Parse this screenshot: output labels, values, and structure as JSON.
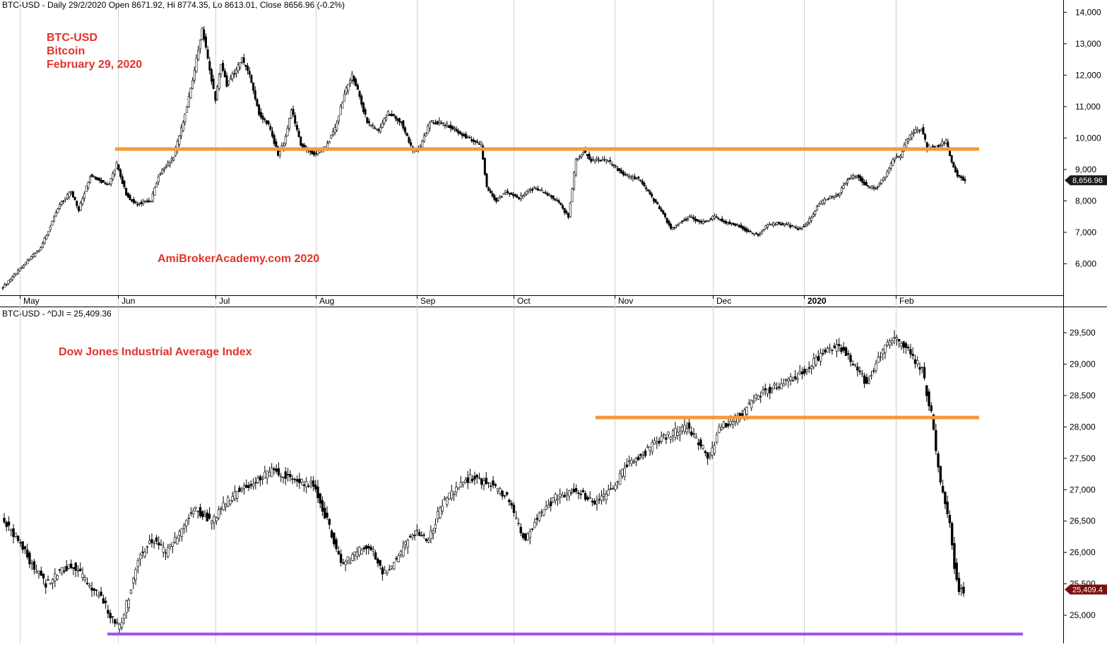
{
  "chart_data": [
    {
      "type": "candlestick",
      "header": "BTC-USD - Daily 29/2/2020 Open 8671.92, Hi 8774.35, Lo 8613.01, Close 8656.96 (-0.2%)",
      "annotations": [
        "BTC-USD",
        "Bitcoin",
        "February 29, 2020"
      ],
      "watermark": "AmiBrokerAcademy.com  2020",
      "y_ticks": [
        "14,000",
        "13,000",
        "12,000",
        "11,000",
        "10,000",
        "9,000",
        "8,000",
        "7,000",
        "6,000"
      ],
      "x_ticks": [
        "May",
        "Jun",
        "Jul",
        "Aug",
        "Sep",
        "Oct",
        "Nov",
        "Dec",
        "2020",
        "Feb"
      ],
      "last_price_label": "8,656.96",
      "last_price": 8656.96,
      "ylim": [
        5000,
        14300
      ],
      "support_line": 9650,
      "support_line_color": "#f59a3a",
      "path": [
        [
          0,
          5250
        ],
        [
          10,
          5900
        ],
        [
          20,
          6500
        ],
        [
          30,
          7900
        ],
        [
          36,
          8300
        ],
        [
          40,
          7700
        ],
        [
          46,
          8800
        ],
        [
          50,
          8700
        ],
        [
          56,
          8500
        ],
        [
          60,
          9200
        ],
        [
          65,
          8200
        ],
        [
          70,
          7900
        ],
        [
          78,
          8000
        ],
        [
          82,
          8800
        ],
        [
          86,
          9100
        ],
        [
          90,
          9400
        ],
        [
          95,
          10500
        ],
        [
          100,
          11800
        ],
        [
          105,
          13500
        ],
        [
          108,
          12500
        ],
        [
          112,
          11200
        ],
        [
          115,
          12400
        ],
        [
          118,
          11700
        ],
        [
          123,
          12200
        ],
        [
          126,
          12500
        ],
        [
          130,
          12000
        ],
        [
          135,
          10800
        ],
        [
          140,
          10400
        ],
        [
          145,
          9500
        ],
        [
          148,
          9800
        ],
        [
          152,
          10900
        ],
        [
          157,
          9800
        ],
        [
          160,
          9600
        ],
        [
          165,
          9500
        ],
        [
          170,
          9700
        ],
        [
          175,
          10300
        ],
        [
          180,
          11400
        ],
        [
          184,
          12000
        ],
        [
          188,
          11300
        ],
        [
          192,
          10500
        ],
        [
          198,
          10200
        ],
        [
          203,
          10800
        ],
        [
          210,
          10500
        ],
        [
          216,
          9600
        ],
        [
          220,
          9700
        ],
        [
          225,
          10500
        ],
        [
          230,
          10500
        ],
        [
          238,
          10300
        ],
        [
          245,
          10000
        ],
        [
          252,
          9800
        ],
        [
          255,
          8400
        ],
        [
          260,
          8000
        ],
        [
          265,
          8300
        ],
        [
          272,
          8100
        ],
        [
          278,
          8400
        ],
        [
          285,
          8300
        ],
        [
          292,
          8000
        ],
        [
          298,
          7500
        ],
        [
          302,
          9300
        ],
        [
          306,
          9600
        ],
        [
          310,
          9300
        ],
        [
          318,
          9300
        ],
        [
          322,
          9100
        ],
        [
          328,
          8800
        ],
        [
          335,
          8700
        ],
        [
          342,
          8100
        ],
        [
          348,
          7600
        ],
        [
          352,
          7100
        ],
        [
          356,
          7300
        ],
        [
          362,
          7500
        ],
        [
          368,
          7300
        ],
        [
          375,
          7500
        ],
        [
          382,
          7300
        ],
        [
          388,
          7200
        ],
        [
          394,
          7000
        ],
        [
          398,
          6900
        ],
        [
          402,
          7200
        ],
        [
          408,
          7300
        ],
        [
          415,
          7200
        ],
        [
          420,
          7100
        ],
        [
          425,
          7400
        ],
        [
          430,
          7900
        ],
        [
          435,
          8100
        ],
        [
          440,
          8200
        ],
        [
          445,
          8700
        ],
        [
          450,
          8800
        ],
        [
          455,
          8500
        ],
        [
          460,
          8400
        ],
        [
          465,
          8800
        ],
        [
          470,
          9400
        ],
        [
          473,
          9400
        ],
        [
          476,
          9900
        ],
        [
          480,
          10200
        ],
        [
          484,
          10300
        ],
        [
          487,
          9700
        ],
        [
          490,
          9700
        ],
        [
          494,
          9800
        ],
        [
          497,
          9900
        ],
        [
          500,
          9200
        ],
        [
          503,
          8800
        ],
        [
          507,
          8656.96
        ]
      ],
      "notes": "Daily OHLC candlesticks, 2019-05 to 2020-02-29; values approximated from chart"
    },
    {
      "type": "candlestick",
      "header": "BTC-USD - ^DJI = 25,409.36",
      "annotation": "Dow Jones Industrial Average Index",
      "y_ticks": [
        "29,500",
        "29,000",
        "28,500",
        "28,000",
        "27,500",
        "27,000",
        "26,500",
        "26,000",
        "25,500",
        "25,000"
      ],
      "last_price_label": "25,409.4",
      "last_price": 25409.36,
      "ylim": [
        24550,
        29850
      ],
      "resistance_line": 28150,
      "resistance_line_color": "#f59a3a",
      "support_line": 24700,
      "support_line_color": "#a64de8",
      "path": [
        [
          0,
          26500
        ],
        [
          6,
          26200
        ],
        [
          12,
          25800
        ],
        [
          18,
          25500
        ],
        [
          24,
          25700
        ],
        [
          30,
          25800
        ],
        [
          36,
          25500
        ],
        [
          42,
          25300
        ],
        [
          46,
          25000
        ],
        [
          50,
          24800
        ],
        [
          54,
          25300
        ],
        [
          58,
          25900
        ],
        [
          64,
          26200
        ],
        [
          70,
          26000
        ],
        [
          76,
          26300
        ],
        [
          82,
          26700
        ],
        [
          90,
          26500
        ],
        [
          96,
          26800
        ],
        [
          102,
          27000
        ],
        [
          108,
          27100
        ],
        [
          116,
          27300
        ],
        [
          124,
          27200
        ],
        [
          130,
          27100
        ],
        [
          134,
          27100
        ],
        [
          138,
          26700
        ],
        [
          142,
          26300
        ],
        [
          146,
          25800
        ],
        [
          150,
          25900
        ],
        [
          156,
          26100
        ],
        [
          160,
          26000
        ],
        [
          164,
          25700
        ],
        [
          168,
          25800
        ],
        [
          172,
          26000
        ],
        [
          176,
          26300
        ],
        [
          180,
          26300
        ],
        [
          184,
          26200
        ],
        [
          190,
          26800
        ],
        [
          196,
          27000
        ],
        [
          202,
          27200
        ],
        [
          210,
          27100
        ],
        [
          218,
          26900
        ],
        [
          222,
          26500
        ],
        [
          226,
          26200
        ],
        [
          230,
          26500
        ],
        [
          234,
          26700
        ],
        [
          240,
          26900
        ],
        [
          248,
          27000
        ],
        [
          256,
          26800
        ],
        [
          264,
          27000
        ],
        [
          270,
          27400
        ],
        [
          278,
          27600
        ],
        [
          284,
          27800
        ],
        [
          290,
          27900
        ],
        [
          296,
          28000
        ],
        [
          302,
          27700
        ],
        [
          306,
          27500
        ],
        [
          310,
          28000
        ],
        [
          316,
          28100
        ],
        [
          320,
          28200
        ],
        [
          326,
          28500
        ],
        [
          332,
          28600
        ],
        [
          338,
          28700
        ],
        [
          344,
          28800
        ],
        [
          350,
          29000
        ],
        [
          356,
          29200
        ],
        [
          362,
          29300
        ],
        [
          366,
          29100
        ],
        [
          370,
          28900
        ],
        [
          374,
          28700
        ],
        [
          378,
          29000
        ],
        [
          382,
          29300
        ],
        [
          386,
          29400
        ],
        [
          390,
          29300
        ],
        [
          394,
          29100
        ],
        [
          398,
          28900
        ],
        [
          402,
          28200
        ],
        [
          404,
          27600
        ],
        [
          406,
          27100
        ],
        [
          410,
          26500
        ],
        [
          412,
          25800
        ],
        [
          414,
          25400
        ],
        [
          416,
          25409.36
        ]
      ],
      "notes": "Daily OHLC candlesticks; values approximated from chart"
    }
  ]
}
